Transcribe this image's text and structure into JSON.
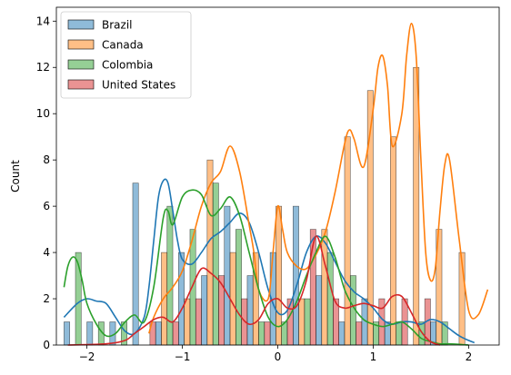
{
  "chart_data": {
    "type": "bar",
    "title": "",
    "xlabel": "",
    "ylabel": "Count",
    "xlim": [
      -2.32,
      2.32
    ],
    "ylim": [
      0,
      14.6
    ],
    "x_ticks": [
      -2,
      -1,
      0,
      1,
      2
    ],
    "x_tick_labels": [
      "−2",
      "−1",
      "0",
      "1",
      "2"
    ],
    "y_ticks": [
      0,
      2,
      4,
      6,
      8,
      10,
      12,
      14
    ],
    "y_tick_labels": [
      "0",
      "2",
      "4",
      "6",
      "8",
      "10",
      "12",
      "14"
    ],
    "grid": false,
    "legend_position": "top-left",
    "bin_edges": [
      -2.24,
      -2.0,
      -1.76,
      -1.52,
      -1.28,
      -1.04,
      -0.8,
      -0.56,
      -0.32,
      -0.08,
      0.16,
      0.4,
      0.64,
      0.88,
      1.12,
      1.36,
      1.6,
      1.84,
      2.08
    ],
    "series": [
      {
        "name": "Brazil",
        "color": "#1f77b4",
        "counts": [
          1,
          1,
          1,
          7,
          1,
          4,
          3,
          6,
          3,
          4,
          6,
          3,
          1,
          2,
          1,
          0,
          1,
          0
        ],
        "kde_x": [
          -2.24,
          -2.1,
          -2.0,
          -1.9,
          -1.8,
          -1.7,
          -1.6,
          -1.5,
          -1.4,
          -1.35,
          -1.3,
          -1.25,
          -1.2,
          -1.15,
          -1.1,
          -1.05,
          -1.0,
          -0.9,
          -0.8,
          -0.7,
          -0.6,
          -0.5,
          -0.4,
          -0.3,
          -0.2,
          -0.1,
          0.0,
          0.1,
          0.2,
          0.3,
          0.4,
          0.5,
          0.6,
          0.7,
          0.8,
          0.9,
          1.0,
          1.1,
          1.2,
          1.3,
          1.4,
          1.5,
          1.6,
          1.7,
          1.8,
          1.9,
          2.0,
          2.06
        ],
        "kde_y": [
          1.2,
          1.8,
          2.0,
          1.9,
          1.8,
          1.2,
          0.6,
          0.5,
          1.2,
          2.5,
          4.5,
          6.4,
          7.1,
          7.0,
          5.8,
          4.5,
          3.7,
          3.5,
          4.0,
          4.6,
          4.9,
          5.3,
          5.7,
          5.3,
          4.0,
          2.4,
          1.4,
          1.5,
          2.6,
          4.0,
          4.7,
          4.4,
          3.6,
          2.8,
          2.3,
          2.0,
          1.6,
          1.1,
          0.9,
          1.0,
          1.0,
          0.9,
          1.1,
          1.0,
          0.7,
          0.4,
          0.2,
          0.1
        ]
      },
      {
        "name": "Canada",
        "color": "#ff7f0e",
        "counts": [
          0,
          0,
          0,
          0,
          4,
          2,
          8,
          4,
          4,
          6,
          2,
          5,
          9,
          11,
          9,
          12,
          5,
          4
        ],
        "kde_x": [
          -1.35,
          -1.3,
          -1.2,
          -1.1,
          -1.0,
          -0.9,
          -0.8,
          -0.7,
          -0.6,
          -0.5,
          -0.4,
          -0.3,
          -0.25,
          -0.2,
          -0.1,
          -0.05,
          0.0,
          0.05,
          0.1,
          0.2,
          0.3,
          0.4,
          0.5,
          0.6,
          0.7,
          0.75,
          0.8,
          0.9,
          1.0,
          1.05,
          1.1,
          1.15,
          1.2,
          1.3,
          1.35,
          1.4,
          1.45,
          1.5,
          1.55,
          1.6,
          1.65,
          1.7,
          1.75,
          1.8,
          1.9,
          2.0,
          2.1,
          2.2
        ],
        "kde_y": [
          0.5,
          1.2,
          2.0,
          2.5,
          3.2,
          4.5,
          6.0,
          7.0,
          7.5,
          8.6,
          7.5,
          5.2,
          4.0,
          2.4,
          2.0,
          4.0,
          6.0,
          5.0,
          4.0,
          3.4,
          3.3,
          3.9,
          4.9,
          6.6,
          8.7,
          9.3,
          8.9,
          7.7,
          10.2,
          12.0,
          12.5,
          11.2,
          8.6,
          10.0,
          12.5,
          13.9,
          12.5,
          8.0,
          4.0,
          2.8,
          3.3,
          5.8,
          7.8,
          8.0,
          4.6,
          1.5,
          1.3,
          2.4
        ]
      },
      {
        "name": "Colombia",
        "color": "#2ca02c",
        "counts": [
          4,
          1,
          1,
          0,
          6,
          5,
          7,
          5,
          1,
          1,
          2,
          4,
          3,
          1,
          1,
          1,
          1,
          0
        ],
        "kde_x": [
          -2.24,
          -2.2,
          -2.15,
          -2.1,
          -2.05,
          -2.0,
          -1.9,
          -1.8,
          -1.7,
          -1.6,
          -1.5,
          -1.4,
          -1.3,
          -1.2,
          -1.15,
          -1.1,
          -1.0,
          -0.9,
          -0.8,
          -0.7,
          -0.6,
          -0.5,
          -0.4,
          -0.3,
          -0.2,
          -0.1,
          0.0,
          0.1,
          0.2,
          0.3,
          0.4,
          0.5,
          0.6,
          0.7,
          0.8,
          0.9,
          1.0,
          1.1,
          1.2,
          1.3,
          1.4,
          1.5,
          1.6,
          1.7,
          1.8,
          2.0
        ],
        "kde_y": [
          2.5,
          3.4,
          3.8,
          3.6,
          2.8,
          1.8,
          0.9,
          0.4,
          0.5,
          1.0,
          1.3,
          1.0,
          2.5,
          5.5,
          5.8,
          5.2,
          6.4,
          6.7,
          6.5,
          5.6,
          5.9,
          6.4,
          5.6,
          4.0,
          2.4,
          1.2,
          0.8,
          1.1,
          1.9,
          3.0,
          4.0,
          4.7,
          3.8,
          2.4,
          1.6,
          1.1,
          0.9,
          0.8,
          0.9,
          1.0,
          0.7,
          0.3,
          0.15,
          0.05,
          0.05,
          0.0
        ]
      },
      {
        "name": "United States",
        "color": "#d62728",
        "counts": [
          0,
          0,
          0,
          1,
          1,
          2,
          3,
          2,
          1,
          2,
          5,
          2,
          1,
          2,
          2,
          2,
          0,
          0
        ],
        "kde_x": [
          -2.2,
          -1.8,
          -1.6,
          -1.5,
          -1.4,
          -1.3,
          -1.2,
          -1.1,
          -1.0,
          -0.9,
          -0.8,
          -0.7,
          -0.6,
          -0.5,
          -0.4,
          -0.3,
          -0.2,
          -0.1,
          0.0,
          0.1,
          0.2,
          0.3,
          0.4,
          0.5,
          0.6,
          0.7,
          0.8,
          0.9,
          1.0,
          1.1,
          1.2,
          1.3,
          1.4,
          1.5,
          1.6,
          1.7
        ],
        "kde_y": [
          0.0,
          0.05,
          0.2,
          0.5,
          0.8,
          1.1,
          1.2,
          1.0,
          1.6,
          2.5,
          3.3,
          3.1,
          2.7,
          2.0,
          1.3,
          0.9,
          1.1,
          1.8,
          2.0,
          1.6,
          1.7,
          2.8,
          4.7,
          3.4,
          1.9,
          1.6,
          1.7,
          1.8,
          1.7,
          1.6,
          2.1,
          2.1,
          1.4,
          0.6,
          0.15,
          0.0
        ]
      }
    ]
  }
}
